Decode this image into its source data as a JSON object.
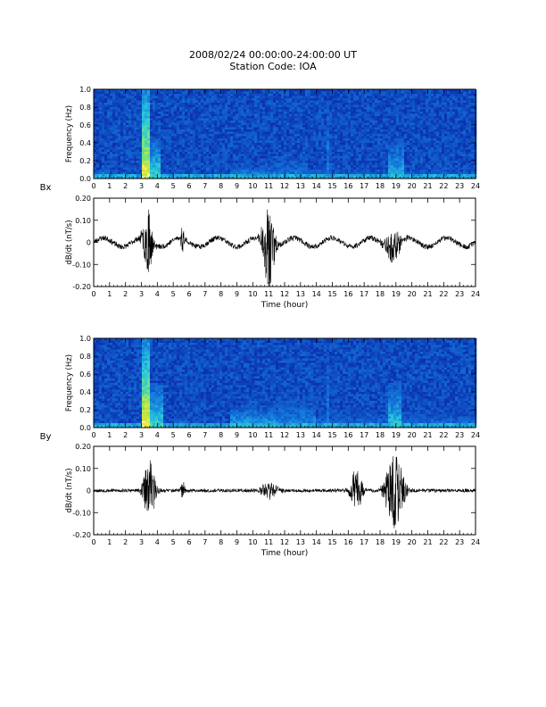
{
  "header": {
    "line1": "2008/02/24 00:00:00-24:00:00 UT",
    "line2": "Station Code: IOA"
  },
  "colors": {
    "waveform": "#000000",
    "spectrogram_low": "#0a2aa0",
    "spectrogram_mid": "#1e9ad0",
    "spectrogram_high": "#f0e020"
  },
  "chart_data": [
    {
      "type": "heatmap",
      "component": "Bx",
      "ylabel": "Frequency (Hz)",
      "ylim": [
        0.0,
        1.0
      ],
      "yticks": [
        "0.0",
        "0.2",
        "0.4",
        "0.6",
        "0.8",
        "1.0"
      ],
      "xlim": [
        0,
        24
      ],
      "xticks": [
        "0",
        "1",
        "2",
        "3",
        "4",
        "5",
        "6",
        "7",
        "8",
        "9",
        "10",
        "11",
        "12",
        "13",
        "14",
        "15",
        "16",
        "17",
        "18",
        "19",
        "20",
        "21",
        "22",
        "23",
        "24"
      ],
      "features": [
        {
          "t0": 3.0,
          "t1": 3.6,
          "fmax": 1.0,
          "level": 0.95
        },
        {
          "t0": 3.6,
          "t1": 4.2,
          "fmax": 0.45,
          "level": 0.7
        },
        {
          "t0": 0.0,
          "t1": 1.0,
          "fmax": 0.1,
          "level": 0.6
        },
        {
          "t0": 8.5,
          "t1": 11.5,
          "fmax": 0.15,
          "level": 0.55
        },
        {
          "t0": 11.5,
          "t1": 13.5,
          "fmax": 0.35,
          "level": 0.45
        },
        {
          "t0": 14.6,
          "t1": 14.8,
          "fmax": 1.0,
          "level": 0.5
        },
        {
          "t0": 18.5,
          "t1": 19.5,
          "fmax": 0.45,
          "level": 0.6
        },
        {
          "t0": 13.5,
          "t1": 24.0,
          "fmax": 0.12,
          "level": 0.45
        }
      ]
    },
    {
      "type": "line",
      "component": "Bx",
      "ylabel": "dB/dt (nT/s)",
      "xlabel": "Time (hour)",
      "ylim": [
        -0.2,
        0.2
      ],
      "yticks": [
        "0.20",
        "0.10",
        "0",
        "-0.10",
        "-0.20"
      ],
      "xlim": [
        0,
        24
      ],
      "xticks": [
        "0",
        "1",
        "2",
        "3",
        "4",
        "5",
        "6",
        "7",
        "8",
        "9",
        "10",
        "11",
        "12",
        "13",
        "14",
        "15",
        "16",
        "17",
        "18",
        "19",
        "20",
        "21",
        "22",
        "23",
        "24"
      ],
      "baseline_wave_amplitude": 0.02,
      "noise_level": 0.012,
      "bursts": [
        {
          "t": 3.4,
          "width": 0.5,
          "amp": 0.14
        },
        {
          "t": 5.6,
          "width": 0.2,
          "amp": 0.06
        },
        {
          "t": 11.0,
          "width": 0.6,
          "amp": 0.2
        },
        {
          "t": 18.8,
          "width": 0.8,
          "amp": 0.08
        }
      ]
    },
    {
      "type": "heatmap",
      "component": "By",
      "ylabel": "Frequency (Hz)",
      "ylim": [
        0.0,
        1.0
      ],
      "yticks": [
        "0.0",
        "0.2",
        "0.4",
        "0.6",
        "0.8",
        "1.0"
      ],
      "xlim": [
        0,
        24
      ],
      "xticks": [
        "0",
        "1",
        "2",
        "3",
        "4",
        "5",
        "6",
        "7",
        "8",
        "9",
        "10",
        "11",
        "12",
        "13",
        "14",
        "15",
        "16",
        "17",
        "18",
        "19",
        "20",
        "21",
        "22",
        "23",
        "24"
      ],
      "features": [
        {
          "t0": 3.0,
          "t1": 3.6,
          "fmax": 1.0,
          "level": 0.95
        },
        {
          "t0": 3.6,
          "t1": 4.3,
          "fmax": 0.5,
          "level": 0.7
        },
        {
          "t0": 5.0,
          "t1": 6.0,
          "fmax": 0.1,
          "level": 0.55
        },
        {
          "t0": 8.5,
          "t1": 11.5,
          "fmax": 0.25,
          "level": 0.6
        },
        {
          "t0": 11.5,
          "t1": 14.0,
          "fmax": 0.4,
          "level": 0.5
        },
        {
          "t0": 14.6,
          "t1": 14.8,
          "fmax": 1.0,
          "level": 0.5
        },
        {
          "t0": 18.5,
          "t1": 19.3,
          "fmax": 0.5,
          "level": 0.65
        },
        {
          "t0": 14.0,
          "t1": 24.0,
          "fmax": 0.2,
          "level": 0.45
        }
      ]
    },
    {
      "type": "line",
      "component": "By",
      "ylabel": "dB/dt (nT/s)",
      "xlabel": "Time (hour)",
      "ylim": [
        -0.2,
        0.2
      ],
      "yticks": [
        "0.20",
        "0.10",
        "0",
        "-0.10",
        "-0.20"
      ],
      "xlim": [
        0,
        24
      ],
      "xticks": [
        "0",
        "1",
        "2",
        "3",
        "4",
        "5",
        "6",
        "7",
        "8",
        "9",
        "10",
        "11",
        "12",
        "13",
        "14",
        "15",
        "16",
        "17",
        "18",
        "19",
        "20",
        "21",
        "22",
        "23",
        "24"
      ],
      "baseline_wave_amplitude": 0.0,
      "noise_level": 0.008,
      "bursts": [
        {
          "t": 3.5,
          "width": 0.6,
          "amp": 0.14
        },
        {
          "t": 5.6,
          "width": 0.2,
          "amp": 0.05
        },
        {
          "t": 11.0,
          "width": 1.0,
          "amp": 0.04
        },
        {
          "t": 16.5,
          "width": 0.6,
          "amp": 0.1
        },
        {
          "t": 18.9,
          "width": 0.9,
          "amp": 0.18
        }
      ]
    }
  ]
}
